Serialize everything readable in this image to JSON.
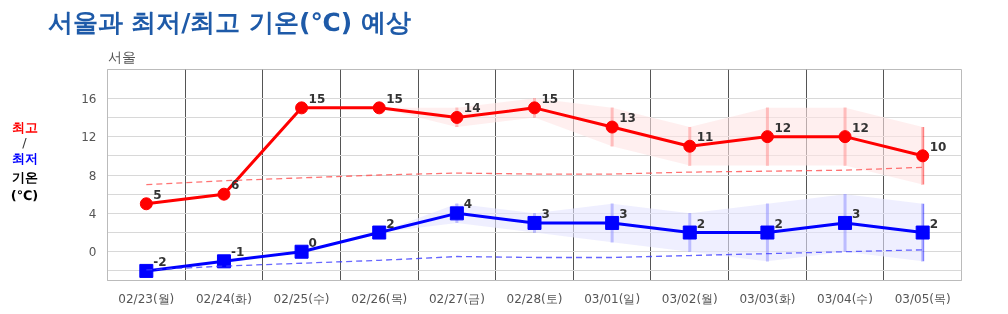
{
  "chart_data": {
    "type": "line",
    "title": "서울과 최저/최고 기온(℃) 예상",
    "subtitle": "서울",
    "ylabel": "기온\n(℃)",
    "annotations": [
      "/"
    ],
    "categories": [
      "02/23(월)",
      "02/24(화)",
      "02/25(수)",
      "02/26(목)",
      "02/27(금)",
      "02/28(토)",
      "03/01(일)",
      "03/02(월)",
      "03/03(화)",
      "03/04(수)",
      "03/05(목)"
    ],
    "ylim": [
      -3,
      19
    ],
    "yticks": [
      {
        "value": -2,
        "label": null
      },
      0,
      {
        "value": 2,
        "label": null
      },
      4,
      {
        "value": 6,
        "label": null
      },
      8,
      {
        "value": 10,
        "label": null
      },
      12,
      {
        "value": 14,
        "label": null
      },
      16
    ],
    "grid": true,
    "series": [
      {
        "name": "최고",
        "color": "#ff0000",
        "marker": "circle",
        "line_style": "solid",
        "values": [
          5,
          6,
          15,
          15,
          14,
          15,
          13,
          11,
          12,
          12,
          10
        ],
        "value_labels": [
          "5",
          "6",
          "15",
          "15",
          "14",
          "15",
          "13",
          "11",
          "12",
          "12",
          "10"
        ],
        "errors": [
          null,
          null,
          null,
          null,
          [
            13,
            15
          ],
          [
            14,
            16
          ],
          [
            11,
            15
          ],
          [
            9,
            13
          ],
          [
            9,
            15
          ],
          [
            9,
            15
          ],
          [
            7,
            13
          ]
        ],
        "lower": [
          5,
          6,
          15,
          15,
          13,
          14,
          11,
          9,
          9,
          9,
          7
        ],
        "upper": [
          5,
          6,
          15,
          15,
          15,
          16,
          15,
          13,
          15,
          15,
          13
        ]
      },
      {
        "name": "최저",
        "color": "#0000ff",
        "marker": "square",
        "line_style": "solid",
        "values": [
          -2,
          -1,
          0,
          2,
          4,
          3,
          3,
          2,
          2,
          3,
          2
        ],
        "value_labels": [
          "-2",
          "-1",
          "0",
          "2",
          "4",
          "3",
          "3",
          "2",
          "2",
          "3",
          "2"
        ],
        "errors": [
          null,
          null,
          null,
          null,
          [
            3,
            5
          ],
          [
            2,
            4
          ],
          [
            1,
            5
          ],
          [
            0,
            4
          ],
          [
            -1,
            5
          ],
          [
            0,
            6
          ],
          [
            -1,
            5
          ]
        ],
        "lower": [
          -2,
          -1,
          0,
          2,
          3,
          2,
          1,
          0,
          -1,
          0,
          -1
        ],
        "upper": [
          -2,
          -1,
          0,
          2,
          5,
          4,
          5,
          4,
          5,
          6,
          5
        ]
      },
      {
        "color": "#ff5050",
        "marker": "none",
        "line_style": "dashed",
        "values": [
          7.0,
          7.4,
          7.7,
          8.0,
          8.2,
          8.1,
          8.1,
          8.3,
          8.4,
          8.5,
          8.8
        ]
      },
      {
        "color": "#4040ff",
        "marker": "none",
        "line_style": "dashed",
        "values": [
          -1.9,
          -1.5,
          -1.2,
          -0.9,
          -0.5,
          -0.6,
          -0.6,
          -0.4,
          -0.2,
          0.0,
          0.2
        ]
      }
    ]
  }
}
